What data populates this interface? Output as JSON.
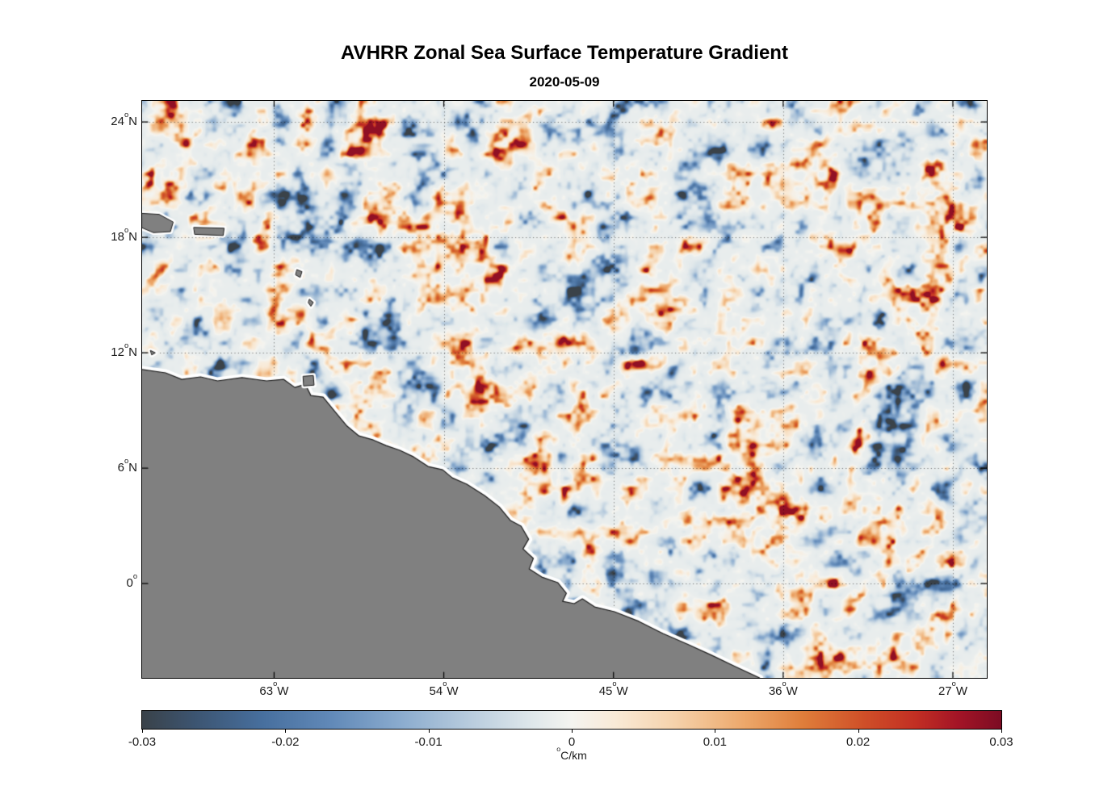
{
  "chart_data": {
    "type": "heatmap",
    "title": "AVHRR Zonal Sea Surface Temperature Gradient",
    "subtitle": "2020-05-09",
    "x_axis": {
      "range": [
        -70.0,
        -25.2
      ],
      "ticks": [
        {
          "value": -63,
          "label": "63",
          "deg": "o",
          "dir": "W"
        },
        {
          "value": -54,
          "label": "54",
          "deg": "o",
          "dir": "W"
        },
        {
          "value": -45,
          "label": "45",
          "deg": "o",
          "dir": "W"
        },
        {
          "value": -36,
          "label": "36",
          "deg": "o",
          "dir": "W"
        },
        {
          "value": -27,
          "label": "27",
          "deg": "o",
          "dir": "W"
        }
      ]
    },
    "y_axis": {
      "range": [
        -4.9,
        25.1
      ],
      "ticks": [
        {
          "value": 24,
          "label": "24",
          "deg": "o",
          "dir": "N"
        },
        {
          "value": 18,
          "label": "18",
          "deg": "o",
          "dir": "N"
        },
        {
          "value": 12,
          "label": "12",
          "deg": "o",
          "dir": "N"
        },
        {
          "value": 6,
          "label": "6",
          "deg": "o",
          "dir": "N"
        },
        {
          "value": 0,
          "label": "0",
          "deg": "o",
          "dir": ""
        }
      ]
    },
    "grid": {
      "color": "rgba(0,0,0,0.5)",
      "style": "dotted"
    },
    "colorbar": {
      "min": -0.03,
      "max": 0.03,
      "unit": {
        "deg": "o",
        "text": "C/km"
      },
      "ticks": [
        {
          "value": -0.03,
          "label": "-0.03"
        },
        {
          "value": -0.02,
          "label": "-0.02"
        },
        {
          "value": -0.01,
          "label": "-0.01"
        },
        {
          "value": 0,
          "label": "0"
        },
        {
          "value": 0.01,
          "label": "0.01"
        },
        {
          "value": 0.02,
          "label": "0.02"
        },
        {
          "value": 0.03,
          "label": "0.03"
        }
      ],
      "stops": [
        {
          "pos": 0.0,
          "color": "#3a4249"
        },
        {
          "pos": 0.06,
          "color": "#3c5470"
        },
        {
          "pos": 0.14,
          "color": "#476f9e"
        },
        {
          "pos": 0.22,
          "color": "#6189b8"
        },
        {
          "pos": 0.3,
          "color": "#8aabce"
        },
        {
          "pos": 0.38,
          "color": "#b7cbdd"
        },
        {
          "pos": 0.45,
          "color": "#dde6ea"
        },
        {
          "pos": 0.5,
          "color": "#f4f4f0"
        },
        {
          "pos": 0.55,
          "color": "#f9ead7"
        },
        {
          "pos": 0.62,
          "color": "#f5d2ab"
        },
        {
          "pos": 0.7,
          "color": "#eda86b"
        },
        {
          "pos": 0.77,
          "color": "#df7d3a"
        },
        {
          "pos": 0.84,
          "color": "#cf4f28"
        },
        {
          "pos": 0.9,
          "color": "#c22f23"
        },
        {
          "pos": 0.95,
          "color": "#a31426"
        },
        {
          "pos": 1.0,
          "color": "#7c0c23"
        }
      ]
    },
    "field": {
      "seed": 31.7,
      "shear": 0.18,
      "octaves": [
        {
          "s": 30,
          "w": 0.52
        },
        {
          "s": 13,
          "w": 0.31
        },
        {
          "s": 6,
          "w": 0.17
        }
      ],
      "gain": 1.55,
      "power": 2.4,
      "bias": -0.05
    },
    "land": {
      "fill": "#808080",
      "outline": "#1a1a1a",
      "halo": "#ffffff",
      "coast": [
        [
          -70.0,
          11.13
        ],
        [
          -68.76,
          10.96
        ],
        [
          -67.9,
          10.62
        ],
        [
          -66.9,
          10.75
        ],
        [
          -66.0,
          10.54
        ],
        [
          -64.7,
          10.71
        ],
        [
          -63.4,
          10.54
        ],
        [
          -62.5,
          10.62
        ],
        [
          -61.9,
          10.2
        ],
        [
          -61.35,
          10.37
        ],
        [
          -61.05,
          9.78
        ],
        [
          -60.4,
          9.7
        ],
        [
          -59.77,
          8.94
        ],
        [
          -59.13,
          8.19
        ],
        [
          -58.5,
          7.68
        ],
        [
          -57.74,
          7.47
        ],
        [
          -57.06,
          7.18
        ],
        [
          -56.33,
          6.93
        ],
        [
          -55.6,
          6.59
        ],
        [
          -54.83,
          6.09
        ],
        [
          -54.06,
          5.92
        ],
        [
          -53.55,
          5.5
        ],
        [
          -52.78,
          5.17
        ],
        [
          -51.84,
          4.58
        ],
        [
          -51.06,
          3.99
        ],
        [
          -50.46,
          3.28
        ],
        [
          -49.9,
          2.99
        ],
        [
          -49.5,
          2.31
        ],
        [
          -49.8,
          1.81
        ],
        [
          -49.25,
          1.31
        ],
        [
          -49.47,
          0.76
        ],
        [
          -48.8,
          0.34
        ],
        [
          -47.95,
          0.05
        ],
        [
          -47.5,
          -0.5
        ],
        [
          -47.7,
          -0.92
        ],
        [
          -47.08,
          -1.04
        ],
        [
          -46.65,
          -0.79
        ],
        [
          -46.0,
          -1.21
        ],
        [
          -44.95,
          -1.46
        ],
        [
          -43.66,
          -1.96
        ],
        [
          -42.38,
          -2.59
        ],
        [
          -41.1,
          -3.14
        ],
        [
          -39.8,
          -3.72
        ],
        [
          -38.54,
          -4.31
        ],
        [
          -37.25,
          -4.9
        ]
      ],
      "islands": [
        [
          [
            -70.0,
            19.25
          ],
          [
            -69.1,
            19.2
          ],
          [
            -68.35,
            18.8
          ],
          [
            -68.5,
            18.3
          ],
          [
            -69.4,
            18.25
          ],
          [
            -70.0,
            18.5
          ]
        ],
        [
          [
            -67.25,
            18.52
          ],
          [
            -65.65,
            18.48
          ],
          [
            -65.7,
            18.1
          ],
          [
            -67.2,
            18.16
          ]
        ],
        [
          [
            -61.78,
            16.32
          ],
          [
            -61.52,
            16.22
          ],
          [
            -61.62,
            15.92
          ],
          [
            -61.85,
            16.05
          ]
        ],
        [
          [
            -61.12,
            14.78
          ],
          [
            -60.92,
            14.62
          ],
          [
            -61.05,
            14.42
          ],
          [
            -61.18,
            14.6
          ]
        ],
        [
          [
            -69.55,
            12.12
          ],
          [
            -69.3,
            12.0
          ],
          [
            -69.48,
            11.9
          ]
        ],
        [
          [
            -61.45,
            10.78
          ],
          [
            -60.92,
            10.82
          ],
          [
            -60.88,
            10.32
          ],
          [
            -61.42,
            10.28
          ]
        ]
      ]
    }
  }
}
